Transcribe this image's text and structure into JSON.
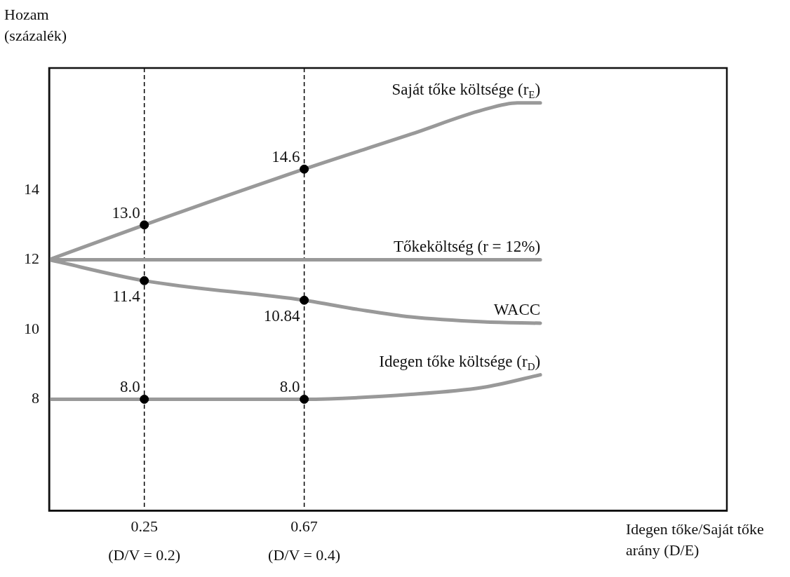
{
  "chart_data": {
    "type": "line",
    "ylabel": "Hozam (százalék)",
    "xlabel": "Idegen tőke/Saját tőke arány (D/E)",
    "xlim": [
      0,
      1.78
    ],
    "ylim": [
      4.8,
      17.5
    ],
    "xticks": [
      0.25,
      0.67
    ],
    "yticks": [
      8,
      10,
      12,
      14
    ],
    "grid": false,
    "legend": false,
    "marker": "none",
    "line_style": "solid",
    "annotations": [
      "(D/V = 0.2)",
      "(D/V = 0.4)"
    ],
    "ref_lines": [
      {
        "axis": "x",
        "value": 0.25,
        "color": "#000000",
        "line_style": "dashed"
      },
      {
        "axis": "x",
        "value": 0.67,
        "color": "#000000",
        "line_style": "dashed"
      }
    ],
    "series": [
      {
        "name": "Saját tőke költsége (r$_{E}$)",
        "color": "#999999",
        "x": [
          0,
          0.25,
          0.67,
          0.95,
          1.14,
          1.23,
          1.29
        ],
        "values": [
          12,
          13.0,
          14.6,
          15.6,
          16.3,
          16.5,
          16.5
        ]
      },
      {
        "name": "Tőkeköltség (r = 12%)",
        "color": "#999999",
        "x": [
          0,
          0.25,
          0.67,
          1.29
        ],
        "values": [
          12,
          12,
          12,
          12
        ]
      },
      {
        "name": "WACC",
        "color": "#999999",
        "x": [
          0,
          0.25,
          0.67,
          0.82,
          0.95,
          1.14,
          1.29
        ],
        "values": [
          12,
          11.4,
          10.84,
          10.56,
          10.36,
          10.22,
          10.18
        ]
      },
      {
        "name": "Idegen tőke költsége (r$_{D}$)",
        "color": "#999999",
        "x": [
          0,
          0.25,
          0.67,
          0.95,
          1.14,
          1.29
        ],
        "values": [
          8,
          8.0,
          8.0,
          8.14,
          8.34,
          8.7
        ]
      },
      {
        "type": "scatter",
        "marker": "circle",
        "color": "#000000",
        "x": [
          0.25,
          0.67,
          0.25,
          0.67,
          0.25,
          0.67
        ],
        "values": [
          13.0,
          14.6,
          11.4,
          10.84,
          8.0,
          8.0
        ],
        "value_labels": [
          "13.0",
          "14.6",
          "11.4",
          "10.84",
          "8.0",
          "8.0"
        ]
      }
    ]
  }
}
